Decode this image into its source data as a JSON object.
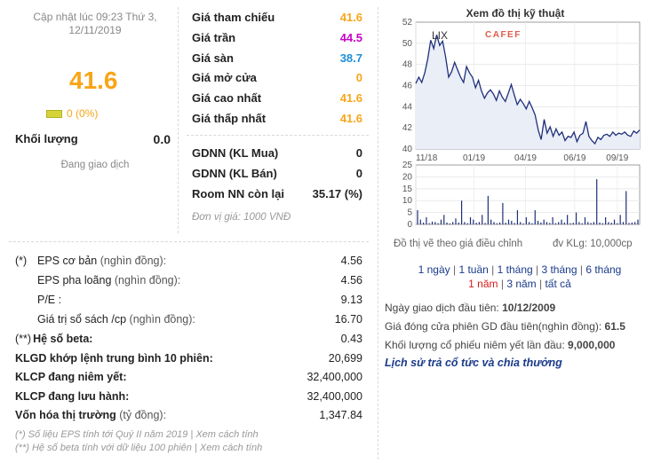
{
  "update_text": "Cập nhật lúc 09:23 Thứ 3,",
  "update_date": "12/11/2019",
  "price": "41.6",
  "change": "0 (0%)",
  "volume_label": "Khối lượng",
  "volume_value": "0.0",
  "trading_status": "Đang giao dịch",
  "prices": [
    {
      "label": "Giá tham chiếu",
      "value": "41.6",
      "color": "#f7a518"
    },
    {
      "label": "Giá trần",
      "value": "44.5",
      "color": "#c800c8"
    },
    {
      "label": "Giá sàn",
      "value": "38.7",
      "color": "#1d8fd6"
    },
    {
      "label": "Giá mở cửa",
      "value": "0",
      "color": "#f7a518"
    },
    {
      "label": "Giá cao nhất",
      "value": "41.6",
      "color": "#f7a518"
    },
    {
      "label": "Giá thấp nhất",
      "value": "41.6",
      "color": "#f7a518"
    }
  ],
  "foreign": [
    {
      "label": "GDNN (KL Mua)",
      "value": "0"
    },
    {
      "label": "GDNN (KL Bán)",
      "value": "0"
    },
    {
      "label": "Room NN còn lại",
      "value": "35.17 (%)"
    }
  ],
  "unit_note": "Đơn vị giá: 1000 VNĐ",
  "stats": [
    {
      "prefix": "(*)",
      "label": "EPS cơ bản",
      "unit": "(nghìn đồng):",
      "value": "4.56"
    },
    {
      "prefix": "",
      "label": "EPS pha loãng",
      "unit": "(nghìn đồng):",
      "value": "4.56"
    },
    {
      "prefix": "",
      "label": "P/E :",
      "unit": "",
      "value": "9.13"
    },
    {
      "prefix": "",
      "label": "Giá trị sổ sách /cp",
      "unit": "(nghìn đồng):",
      "value": "16.70"
    },
    {
      "prefix": "(**)",
      "label": "Hệ số beta:",
      "unit": "",
      "value": "0.43"
    }
  ],
  "stats_bold": [
    {
      "label": "KLGD khớp lệnh trung bình 10 phiên:",
      "value": "20,699"
    },
    {
      "label": "KLCP đang niêm yết:",
      "value": "32,400,000"
    },
    {
      "label": "KLCP đang lưu hành:",
      "value": "32,400,000"
    },
    {
      "label": "Vốn hóa thị trường",
      "unit": "(tỷ đồng):",
      "value": "1,347.84"
    }
  ],
  "foot1_text": "(*) Số liệu EPS tính tới Quý II năm 2019 |",
  "foot1_link": "Xem cách tính",
  "foot2_text": "(**) Hệ số beta tính với dữ liệu 100 phiên |",
  "foot2_link": "Xem cách tính",
  "chart_title": "Xem đồ thị kỹ thuật",
  "chart_ticker": "LIX",
  "chart_brand": "CAFEF",
  "chart_note_left": "Đồ thị vẽ theo giá điều chỉnh",
  "chart_note_right": "đv KLg: 10,000cp",
  "timeframes_row1": [
    "1 ngày",
    "1 tuần",
    "1 tháng",
    "3 tháng",
    "6 tháng"
  ],
  "timeframes_row2": [
    "1 năm",
    "3 năm",
    "tất cả"
  ],
  "timeframe_active": "1 năm",
  "info": [
    {
      "label": "Ngày giao dịch đầu tiên:",
      "value": "10/12/2009"
    },
    {
      "label": "Giá đóng cửa phiên GD đầu tiên(nghìn đồng):",
      "value": "61.5"
    },
    {
      "label": "Khối lượng cổ phiếu niêm yết lần đầu:",
      "value": "9,000,000"
    }
  ],
  "history_link": "Lịch sử trả cổ tức và chia thưởng",
  "chart_data": {
    "type": "line",
    "title": "",
    "x_ticks": [
      "11/18",
      "01/19",
      "04/19",
      "06/19",
      "09/19"
    ],
    "ylim": [
      40,
      52
    ],
    "y_ticks": [
      40,
      42,
      44,
      46,
      48,
      50,
      52
    ],
    "price_series": [
      46.2,
      46.8,
      46.3,
      47.2,
      48.5,
      50.3,
      49.5,
      50.8,
      49.8,
      50.2,
      48.7,
      46.8,
      47.3,
      48.2,
      47.5,
      46.8,
      46.3,
      47.8,
      47.2,
      46.8,
      45.8,
      46.5,
      45.5,
      44.8,
      45.3,
      45.6,
      45.2,
      44.6,
      45.5,
      44.9,
      44.5,
      45.3,
      46.1,
      45.1,
      44.2,
      44.7,
      44.3,
      43.8,
      44.5,
      43.9,
      43.2,
      41.8,
      40.9,
      42.8,
      41.5,
      42.1,
      41.2,
      41.9,
      41.3,
      41.6,
      40.8,
      41.2,
      41.1,
      41.6,
      40.7,
      41.3,
      41.5,
      42.6,
      41.2,
      40.8,
      40.5,
      41.1,
      40.9,
      41.3,
      41.4,
      41.2,
      41.6,
      41.3,
      41.5,
      41.4,
      41.6,
      41.3,
      41.2,
      41.7,
      41.5,
      41.8
    ],
    "volume_ylim": [
      0,
      25
    ],
    "volume_ticks": [
      0,
      5,
      10,
      15,
      20,
      25
    ],
    "volume_series": [
      6,
      2,
      0.8,
      3,
      0.5,
      1.2,
      1,
      0.5,
      2,
      4,
      0.8,
      0.4,
      1,
      2.5,
      0.8,
      10,
      1,
      0.5,
      3,
      2,
      0.7,
      1,
      4,
      0.6,
      12,
      2,
      1,
      0.5,
      0.8,
      9,
      0.7,
      2,
      1.5,
      0.6,
      6,
      1,
      0.4,
      3,
      1,
      0.5,
      6,
      1.5,
      0.8,
      2,
      1,
      0.6,
      3,
      0.5,
      1,
      2,
      0.8,
      4,
      0.5,
      0.7,
      5,
      1,
      0.5,
      3,
      1,
      0.6,
      1,
      19,
      0.8,
      0.5,
      3,
      1,
      0.7,
      2,
      0.5,
      4,
      1,
      14,
      0.6,
      0.8,
      1,
      2
    ]
  }
}
